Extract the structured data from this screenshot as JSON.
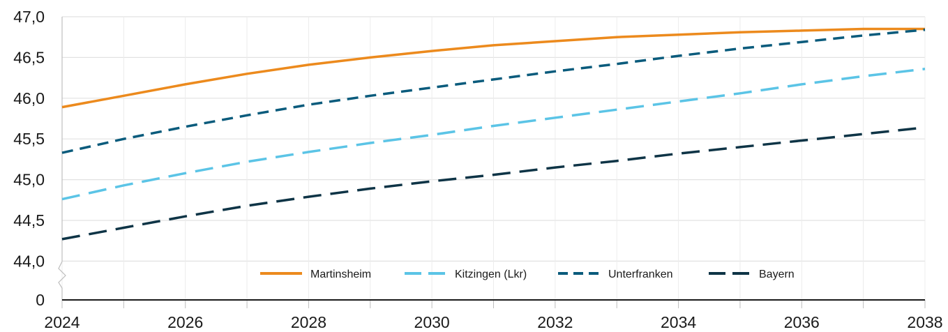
{
  "chart_data": {
    "type": "line",
    "title": "",
    "xlabel": "",
    "ylabel": "",
    "x": [
      2024,
      2025,
      2026,
      2027,
      2028,
      2029,
      2030,
      2031,
      2032,
      2033,
      2034,
      2035,
      2036,
      2037,
      2038
    ],
    "x_tick_labels": [
      "2024",
      "2026",
      "2028",
      "2030",
      "2032",
      "2034",
      "2036",
      "2038"
    ],
    "y_tick_labels": [
      "0",
      "44,0",
      "44,5",
      "45,0",
      "45,5",
      "46,0",
      "46,5",
      "47,0"
    ],
    "y_tick_values": [
      0,
      44.0,
      44.5,
      45.0,
      45.5,
      46.0,
      46.5,
      47.0
    ],
    "ylim": [
      44.0,
      47.0
    ],
    "y_axis_break": true,
    "grid": true,
    "legend_position": "bottom-center",
    "series": [
      {
        "name": "Martinsheim",
        "color": "#ec8a1d",
        "style": "solid",
        "values": [
          45.89,
          46.03,
          46.17,
          46.3,
          46.41,
          46.5,
          46.58,
          46.65,
          46.7,
          46.75,
          46.78,
          46.81,
          46.83,
          46.85,
          46.85
        ]
      },
      {
        "name": "Kitzingen (Lkr)",
        "color": "#5bc4e6",
        "style": "dashed-long",
        "values": [
          44.76,
          44.93,
          45.08,
          45.22,
          45.34,
          45.45,
          45.55,
          45.66,
          45.76,
          45.86,
          45.96,
          46.06,
          46.17,
          46.27,
          46.36
        ]
      },
      {
        "name": "Unterfranken",
        "color": "#0a5b7c",
        "style": "dashed",
        "values": [
          45.33,
          45.5,
          45.65,
          45.79,
          45.92,
          46.03,
          46.13,
          46.23,
          46.33,
          46.42,
          46.52,
          46.61,
          46.69,
          46.77,
          46.84
        ]
      },
      {
        "name": "Bayern",
        "color": "#0e3446",
        "style": "dashed-long",
        "values": [
          44.27,
          44.41,
          44.55,
          44.68,
          44.79,
          44.89,
          44.98,
          45.06,
          45.15,
          45.23,
          45.32,
          45.4,
          45.48,
          45.56,
          45.64
        ]
      }
    ]
  }
}
